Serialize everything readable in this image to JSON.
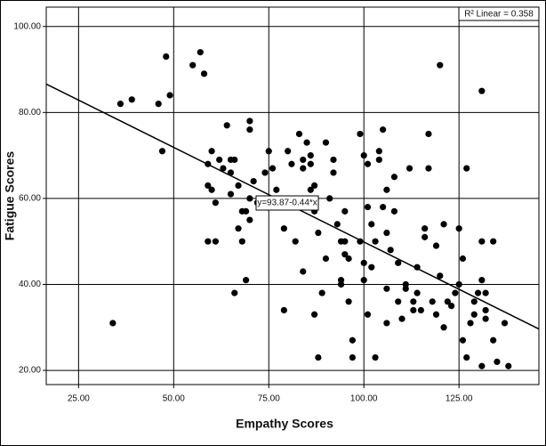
{
  "chart_data": {
    "type": "scatter",
    "xlabel": "Empathy Scores",
    "ylabel": "Fatigue Scores",
    "annotations": [
      "R² Linear = 0.358",
      "y=93.87-0.44*x"
    ],
    "fit": {
      "intercept": 93.87,
      "slope": -0.44
    },
    "xlim": [
      16.5,
      146
    ],
    "ylim": [
      16.7,
      104.5
    ],
    "xticks": [
      {
        "value": 25,
        "label": "25.00"
      },
      {
        "value": 50,
        "label": "50.00"
      },
      {
        "value": 75,
        "label": "75.00"
      },
      {
        "value": 100,
        "label": "100.00"
      },
      {
        "value": 125,
        "label": "125.00"
      }
    ],
    "yticks": [
      {
        "value": 20,
        "label": "20.00"
      },
      {
        "value": 40,
        "label": "40.00"
      },
      {
        "value": 60,
        "label": "60.00"
      },
      {
        "value": 80,
        "label": "80.00"
      },
      {
        "value": 100,
        "label": "100.00"
      }
    ],
    "grid": true,
    "color": "#000000",
    "line_color": "#000000",
    "series": [
      {
        "name": "Fatigue Scores",
        "color": "#000000",
        "x": [
          34,
          36,
          39,
          46,
          47,
          48,
          49,
          55,
          57,
          58,
          59,
          59,
          60,
          59,
          60,
          61,
          62,
          63,
          64,
          61,
          65,
          66,
          65,
          65,
          67,
          68,
          67,
          66,
          68,
          69,
          70,
          70,
          70,
          71,
          70,
          69,
          72,
          74,
          75,
          76,
          77,
          79,
          79,
          80,
          81,
          82,
          83,
          84,
          84,
          85,
          86,
          86,
          86,
          87,
          87,
          84,
          87,
          88,
          88,
          89,
          90,
          90,
          91,
          92,
          92,
          93,
          94,
          94,
          94,
          95,
          95,
          95,
          96,
          96,
          97,
          97,
          99,
          99,
          100,
          100,
          100,
          101,
          101,
          101,
          102,
          102,
          103,
          103,
          104,
          104,
          105,
          105,
          106,
          106,
          106,
          106,
          107,
          108,
          108,
          109,
          109,
          110,
          111,
          111,
          112,
          113,
          113,
          114,
          114,
          115,
          116,
          116,
          117,
          117,
          118,
          119,
          119,
          120,
          120,
          121,
          121,
          122,
          123,
          124,
          125,
          125,
          126,
          126,
          127,
          127,
          128,
          129,
          129,
          130,
          131,
          131,
          131,
          131,
          132,
          132,
          132,
          134,
          134,
          135,
          137,
          138
        ],
        "values": [
          31,
          82,
          83,
          82,
          71,
          93,
          84,
          91,
          94,
          89,
          68,
          63,
          71,
          50,
          62,
          50,
          69,
          67,
          77,
          59,
          69,
          69,
          66,
          61,
          63,
          57,
          53,
          38,
          50,
          57,
          76,
          78,
          60,
          64,
          55,
          41,
          59,
          66,
          71,
          67,
          62,
          53,
          34,
          71,
          68,
          50,
          75,
          69,
          67,
          73,
          70,
          62,
          68,
          63,
          57,
          43,
          33,
          23,
          52,
          38,
          46,
          73,
          60,
          66,
          69,
          54,
          41,
          50,
          40,
          47,
          50,
          57,
          46,
          36,
          27,
          23,
          75,
          50,
          41,
          70,
          45,
          68,
          33,
          58,
          44,
          54,
          23,
          50,
          71,
          69,
          58,
          76,
          31,
          52,
          62,
          39,
          48,
          57,
          65,
          45,
          36,
          32,
          39,
          40,
          67,
          34,
          36,
          44,
          38,
          34,
          51,
          53,
          75,
          67,
          36,
          49,
          33,
          91,
          42,
          54,
          30,
          36,
          35,
          38,
          53,
          40,
          46,
          27,
          23,
          67,
          31,
          36,
          33,
          38,
          85,
          21,
          41,
          50,
          38,
          32,
          34,
          50,
          27,
          22,
          31,
          21
        ]
      }
    ]
  }
}
